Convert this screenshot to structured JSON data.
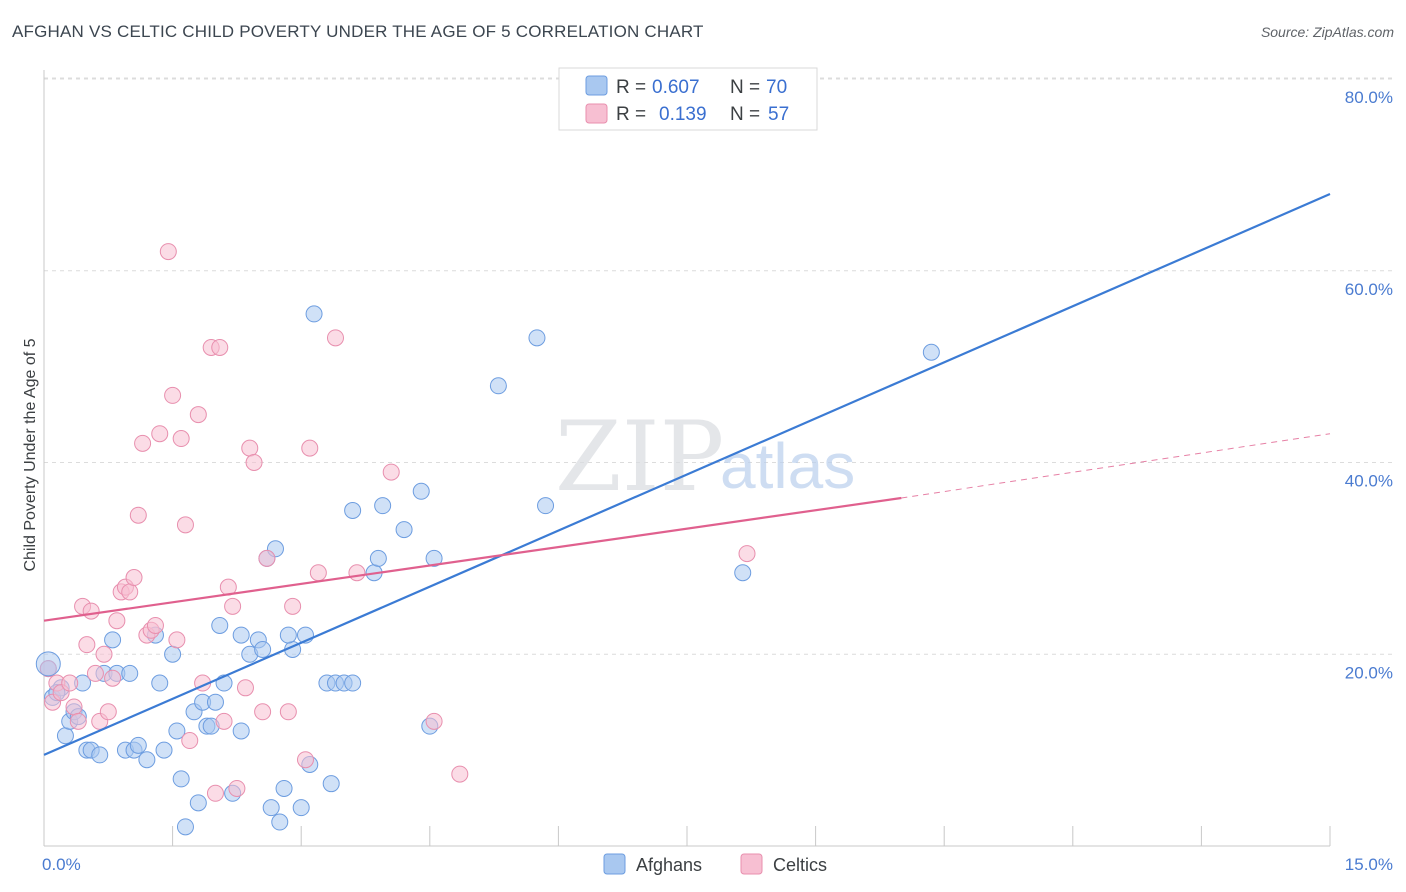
{
  "title": "AFGHAN VS CELTIC CHILD POVERTY UNDER THE AGE OF 5 CORRELATION CHART",
  "source": "Source: ZipAtlas.com",
  "watermark": {
    "zip": "ZIP",
    "atlas": "atlas"
  },
  "legend": {
    "r_label": "R =",
    "n_label": "N =",
    "rows": [
      {
        "series": "Afghans",
        "r": "0.607",
        "n": "70"
      },
      {
        "series": "Celtics",
        "r": "0.139",
        "n": "57"
      }
    ]
  },
  "chart_data": {
    "type": "scatter",
    "title": "AFGHAN VS CELTIC CHILD POVERTY UNDER THE AGE OF 5 CORRELATION CHART",
    "xlabel": "",
    "ylabel": "Child Poverty Under the Age of 5",
    "xlim": [
      0,
      15
    ],
    "ylim": [
      0,
      82
    ],
    "x_tick_labels": [
      "0.0%",
      "15.0%"
    ],
    "y_ticks": [
      20,
      40,
      60,
      80
    ],
    "y_tick_labels": [
      "20.0%",
      "40.0%",
      "60.0%",
      "80.0%"
    ],
    "colors": {
      "Afghans": "#3b7bd4",
      "Celtics": "#e0608e",
      "afghan_fill": "#a9c8f0",
      "celtic_fill": "#f7bfd2"
    },
    "series": [
      {
        "name": "Afghans",
        "trend": {
          "x0": 0,
          "y0": 9.5,
          "x1": 15,
          "y1": 68
        },
        "points": [
          [
            0.05,
            18.5
          ],
          [
            0.1,
            15.5
          ],
          [
            0.2,
            16.5
          ],
          [
            0.25,
            11.5
          ],
          [
            0.3,
            13
          ],
          [
            0.35,
            14
          ],
          [
            0.45,
            17
          ],
          [
            0.5,
            10
          ],
          [
            0.55,
            10
          ],
          [
            0.65,
            9.5
          ],
          [
            0.7,
            18
          ],
          [
            0.8,
            21.5
          ],
          [
            0.85,
            18
          ],
          [
            0.95,
            10
          ],
          [
            1.05,
            10
          ],
          [
            1.1,
            10.5
          ],
          [
            1.2,
            9
          ],
          [
            1.3,
            22
          ],
          [
            1.35,
            17
          ],
          [
            1.4,
            10
          ],
          [
            1.5,
            20
          ],
          [
            1.55,
            12
          ],
          [
            1.6,
            7
          ],
          [
            1.65,
            2
          ],
          [
            1.75,
            14
          ],
          [
            1.8,
            4.5
          ],
          [
            1.85,
            15
          ],
          [
            1.9,
            12.5
          ],
          [
            1.95,
            12.5
          ],
          [
            2.0,
            15
          ],
          [
            2.05,
            23
          ],
          [
            2.1,
            17
          ],
          [
            2.2,
            5.5
          ],
          [
            2.3,
            12
          ],
          [
            2.3,
            22
          ],
          [
            2.4,
            20
          ],
          [
            2.5,
            21.5
          ],
          [
            2.55,
            20.5
          ],
          [
            2.6,
            30
          ],
          [
            2.65,
            4
          ],
          [
            2.7,
            31
          ],
          [
            2.75,
            2.5
          ],
          [
            2.8,
            6
          ],
          [
            2.9,
            20.5
          ],
          [
            3.0,
            4
          ],
          [
            3.05,
            22
          ],
          [
            3.1,
            8.5
          ],
          [
            3.15,
            55.5
          ],
          [
            3.3,
            17
          ],
          [
            3.4,
            17
          ],
          [
            3.35,
            6.5
          ],
          [
            3.5,
            17
          ],
          [
            3.6,
            17
          ],
          [
            3.6,
            35
          ],
          [
            3.85,
            28.5
          ],
          [
            3.9,
            30
          ],
          [
            3.95,
            35.5
          ],
          [
            4.2,
            33
          ],
          [
            4.4,
            37
          ],
          [
            4.55,
            30
          ],
          [
            4.5,
            12.5
          ],
          [
            5.3,
            48
          ],
          [
            5.85,
            35.5
          ],
          [
            5.75,
            53
          ],
          [
            8.15,
            28.5
          ],
          [
            10.35,
            51.5
          ],
          [
            0.15,
            16
          ],
          [
            0.4,
            13.5
          ],
          [
            1.0,
            18
          ],
          [
            2.85,
            22
          ]
        ]
      },
      {
        "name": "Celtics",
        "trend": {
          "x0": 0,
          "y0": 23.5,
          "x1": 10,
          "y1": 36.3,
          "dash_x1": 15,
          "dash_y1": 43
        },
        "points": [
          [
            0.05,
            18.5
          ],
          [
            0.1,
            15
          ],
          [
            0.15,
            17
          ],
          [
            0.2,
            16
          ],
          [
            0.3,
            17
          ],
          [
            0.35,
            14.5
          ],
          [
            0.4,
            13
          ],
          [
            0.45,
            25
          ],
          [
            0.5,
            21
          ],
          [
            0.55,
            24.5
          ],
          [
            0.6,
            18
          ],
          [
            0.65,
            13
          ],
          [
            0.7,
            20
          ],
          [
            0.75,
            14
          ],
          [
            0.8,
            17.5
          ],
          [
            0.85,
            23.5
          ],
          [
            0.9,
            26.5
          ],
          [
            0.95,
            27
          ],
          [
            1.0,
            26.5
          ],
          [
            1.05,
            28
          ],
          [
            1.1,
            34.5
          ],
          [
            1.15,
            42
          ],
          [
            1.2,
            22
          ],
          [
            1.25,
            22.5
          ],
          [
            1.35,
            43
          ],
          [
            1.45,
            62
          ],
          [
            1.5,
            47
          ],
          [
            1.55,
            21.5
          ],
          [
            1.6,
            42.5
          ],
          [
            1.65,
            33.5
          ],
          [
            1.7,
            11
          ],
          [
            1.8,
            45
          ],
          [
            1.85,
            17
          ],
          [
            1.95,
            52
          ],
          [
            2.0,
            5.5
          ],
          [
            2.05,
            52
          ],
          [
            2.1,
            13
          ],
          [
            2.15,
            27
          ],
          [
            2.2,
            25
          ],
          [
            2.25,
            6
          ],
          [
            2.35,
            16.5
          ],
          [
            2.4,
            41.5
          ],
          [
            2.45,
            40
          ],
          [
            2.55,
            14
          ],
          [
            2.6,
            30
          ],
          [
            2.9,
            25
          ],
          [
            2.85,
            14
          ],
          [
            3.05,
            9
          ],
          [
            3.1,
            41.5
          ],
          [
            3.2,
            28.5
          ],
          [
            3.4,
            53
          ],
          [
            3.65,
            28.5
          ],
          [
            4.05,
            39
          ],
          [
            4.55,
            13
          ],
          [
            4.85,
            7.5
          ],
          [
            8.2,
            30.5
          ],
          [
            1.3,
            23
          ]
        ]
      }
    ]
  }
}
